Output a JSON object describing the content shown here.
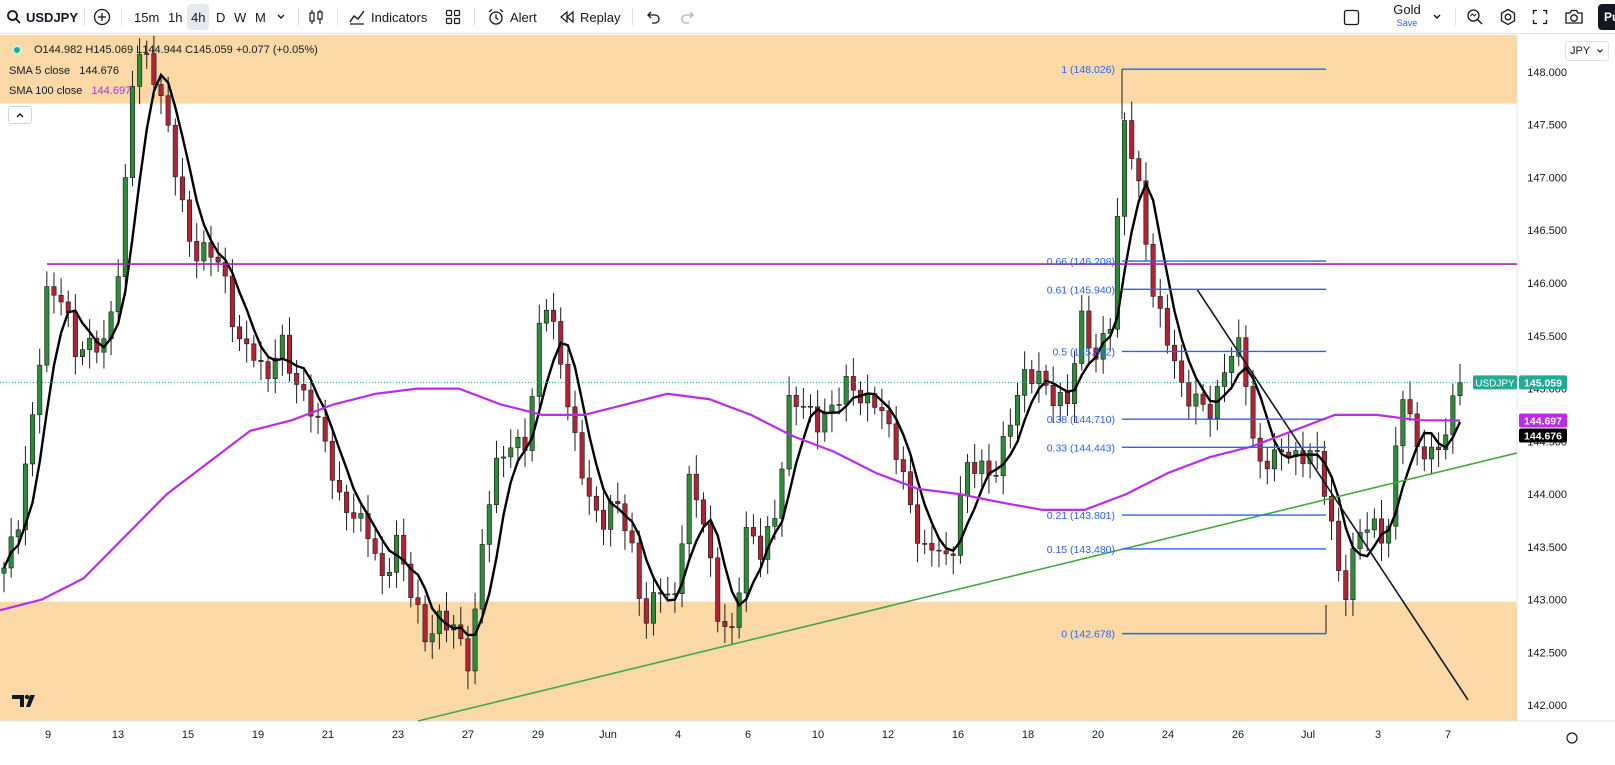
{
  "toolbar": {
    "symbol": "USDJPY",
    "intervals": [
      "15m",
      "1h",
      "4h",
      "D",
      "W",
      "M"
    ],
    "active_interval": "4h",
    "indicators_label": "Indicators",
    "alert_label": "Alert",
    "replay_label": "Replay",
    "layout_name": "Gold",
    "save_label": "Save",
    "publish_label": "Pu"
  },
  "legend": {
    "ohlc": "O144.982  H145.069  L144.944  C145.059  +0.077 (+0.05%)",
    "sma5_label": "SMA 5 close",
    "sma5_value": "144.676",
    "sma100_label": "SMA 100 close",
    "sma100_value": "144.697"
  },
  "currency": "JPY",
  "colors": {
    "up": "#2e8b38",
    "down": "#b22234",
    "sma5": "#000000",
    "sma100": "#b92de8",
    "zone": "#fad9a6",
    "fib": "#2962ff",
    "trend_up": "#43a843",
    "resistance": "#9c27b0",
    "price_badge": "#22ab94"
  },
  "chart_data": {
    "type": "candlestick",
    "symbol": "USDJPY",
    "interval": "4h",
    "price_axis": {
      "ticks": [
        "148.000",
        "147.500",
        "147.000",
        "146.500",
        "146.000",
        "145.500",
        "145.000",
        "144.500",
        "144.000",
        "143.500",
        "143.000",
        "142.500",
        "142.000"
      ],
      "ylim": [
        141.85,
        148.35
      ]
    },
    "time_axis": {
      "ticks": [
        "9",
        "13",
        "15",
        "19",
        "21",
        "23",
        "27",
        "29",
        "Jun",
        "4",
        "6",
        "10",
        "12",
        "16",
        "18",
        "20",
        "24",
        "26",
        "Jul",
        "3",
        "7"
      ]
    },
    "close_path": [
      143.3,
      143.7,
      144.8,
      146.0,
      145.8,
      145.3,
      145.5,
      145.4,
      146.2,
      148.3,
      148.1,
      147.6,
      146.9,
      146.3,
      146.3,
      146.1,
      145.5,
      145.4,
      145.0,
      145.5,
      145.1,
      144.8,
      144.5,
      144.0,
      143.8,
      143.6,
      143.2,
      143.6,
      143.0,
      142.6,
      142.9,
      142.7,
      142.3,
      143.8,
      144.4,
      144.4,
      144.5,
      146.0,
      145.4,
      144.6,
      144.1,
      143.7,
      143.9,
      143.6,
      142.8,
      143.1,
      142.9,
      144.2,
      143.8,
      142.8,
      142.7,
      143.7,
      143.4,
      143.8,
      145.0,
      144.8,
      144.6,
      144.9,
      145.1,
      144.8,
      144.9,
      144.6,
      144.0,
      143.4,
      143.6,
      143.3,
      144.2,
      144.3,
      144.2,
      144.6,
      145.1,
      145.2,
      144.9,
      144.8,
      145.7,
      145.3,
      145.6,
      147.6,
      146.9,
      145.8,
      145.4,
      145.0,
      144.9,
      144.7,
      145.3,
      145.5,
      144.2,
      144.3,
      144.5,
      144.3,
      144.4,
      143.9,
      143.0,
      143.6,
      143.7,
      143.6,
      145.0,
      144.4,
      144.4,
      144.6,
      145.059
    ],
    "sma100_path": [
      142.9,
      143.0,
      143.2,
      143.6,
      144.0,
      144.3,
      144.6,
      144.7,
      144.85,
      144.95,
      145.0,
      145.0,
      144.85,
      144.75,
      144.75,
      144.85,
      144.95,
      144.9,
      144.75,
      144.55,
      144.4,
      144.2,
      144.05,
      144.0,
      143.92,
      143.85,
      143.85,
      144.0,
      144.2,
      144.35,
      144.45,
      144.6,
      144.75,
      144.75,
      144.7,
      144.697
    ],
    "sma5_last": 144.676,
    "last_price": 145.059,
    "sma100_last": 144.697,
    "resistance_level": 146.18,
    "fibonacci": [
      {
        "ratio": "1",
        "price": "148.026",
        "label": "1 (148.026)"
      },
      {
        "ratio": "0.66",
        "price": "146.208",
        "label": "0.66 (146.208)"
      },
      {
        "ratio": "0.61",
        "price": "145.940",
        "label": "0.61 (145.940)"
      },
      {
        "ratio": "0.5",
        "price": "145.352",
        "label": "0.5 (145.352)"
      },
      {
        "ratio": "0.38",
        "price": "144.710",
        "label": "0.38 (144.710)"
      },
      {
        "ratio": "0.33",
        "price": "144.443",
        "label": "0.33 (144.443)"
      },
      {
        "ratio": "0.21",
        "price": "143.801",
        "label": "0.21 (143.801)"
      },
      {
        "ratio": "0.15",
        "price": "143.480",
        "label": "0.15 (143.480)"
      },
      {
        "ratio": "0",
        "price": "142.678",
        "label": "0 (142.678)"
      }
    ],
    "zones": [
      {
        "name": "support-zone",
        "from": 141.85,
        "to": 142.98
      },
      {
        "name": "resistance-zone",
        "from": 147.7,
        "to": 148.35
      }
    ],
    "badges": {
      "symbol_badge": "USDJPY",
      "price_badge": "145.059",
      "sma100_badge": "144.697",
      "sma5_badge": "144.676"
    }
  }
}
